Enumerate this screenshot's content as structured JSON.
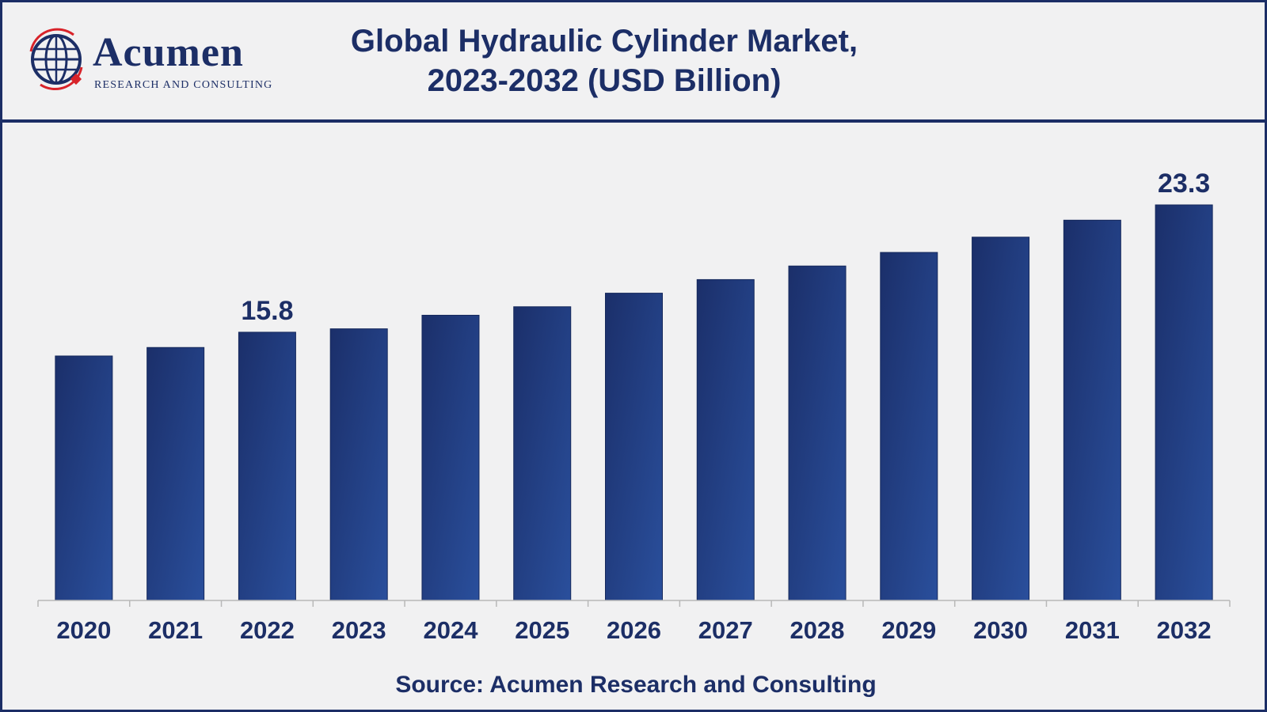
{
  "header": {
    "logo_word": "Acumen",
    "logo_subtitle": "RESEARCH AND CONSULTING",
    "title_line1": "Global Hydraulic Cylinder Market,",
    "title_line2": "2023-2032 (USD Billion)"
  },
  "footer": {
    "source": "Source: Acumen Research and Consulting"
  },
  "colors": {
    "navy": "#1c2e66",
    "bar_dark": "#1b2f6a",
    "bar_light": "#2a4f9c",
    "background": "#f1f1f2",
    "logo_red": "#d8232a"
  },
  "chart_data": {
    "type": "bar",
    "title": "Global Hydraulic Cylinder Market, 2023-2032 (USD Billion)",
    "categories": [
      "2020",
      "2021",
      "2022",
      "2023",
      "2024",
      "2025",
      "2026",
      "2027",
      "2028",
      "2029",
      "2030",
      "2031",
      "2032"
    ],
    "series": [
      {
        "values": [
          14.4,
          14.9,
          15.8,
          16.0,
          16.8,
          17.3,
          18.1,
          18.9,
          19.7,
          20.5,
          21.4,
          22.4,
          23.3
        ]
      }
    ],
    "data_labels": {
      "2022": "15.8",
      "2032": "23.3"
    },
    "ylim": [
      0,
      25
    ],
    "xlabel": "",
    "ylabel": "",
    "grid": false,
    "legend": "none"
  }
}
